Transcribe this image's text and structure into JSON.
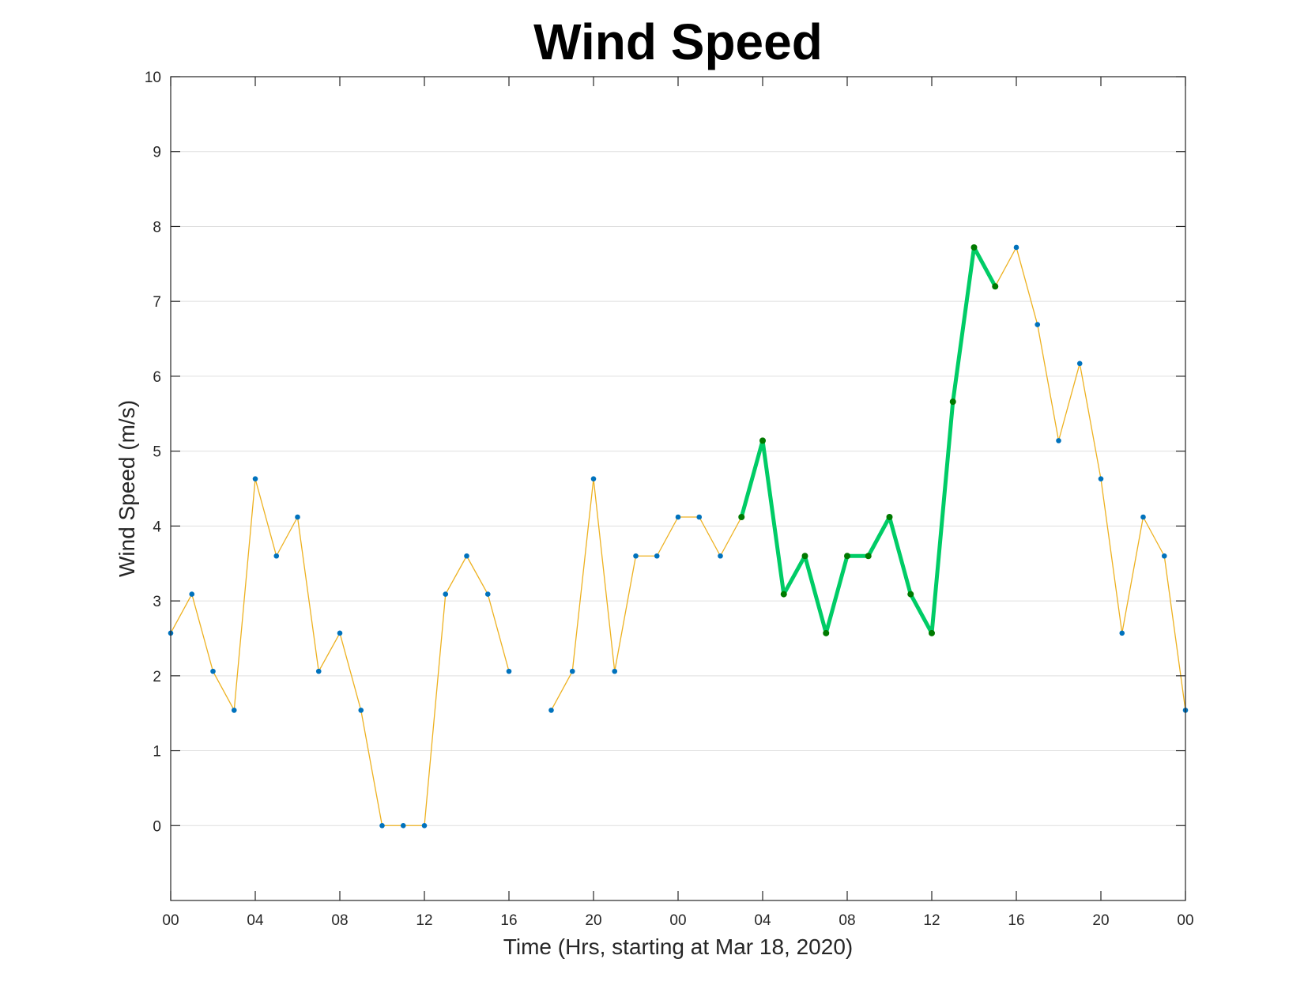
{
  "chart_data": {
    "type": "line",
    "title": "Wind Speed",
    "xlabel": "Time (Hrs, starting at Mar 18, 2020)",
    "ylabel": "Wind Speed (m/s)",
    "xlim": [
      0,
      48
    ],
    "ylim": [
      -1,
      10
    ],
    "grid": "horizontal",
    "legend": "none",
    "x_tick_positions": [
      0,
      4,
      8,
      12,
      16,
      20,
      24,
      28,
      32,
      36,
      40,
      44,
      48
    ],
    "x_tick_labels": [
      "00",
      "04",
      "08",
      "12",
      "16",
      "20",
      "00",
      "04",
      "08",
      "12",
      "16",
      "20",
      "00"
    ],
    "y_ticks": [
      0,
      1,
      2,
      3,
      4,
      5,
      6,
      7,
      8,
      9,
      10
    ],
    "series": [
      {
        "role": "all-hours",
        "color": "#EDB120",
        "marker_color": "#0072BD",
        "x": [
          0,
          1,
          2,
          3,
          4,
          5,
          6,
          7,
          8,
          9,
          10,
          11,
          12,
          13,
          14,
          15,
          16,
          17,
          18,
          19,
          20,
          21,
          22,
          23,
          24,
          25,
          26,
          27,
          28,
          29,
          30,
          31,
          32,
          33,
          34,
          35,
          36,
          37,
          38,
          39,
          40,
          41,
          42,
          43,
          44,
          45,
          46,
          47,
          48
        ],
        "values": [
          2.57,
          3.09,
          2.06,
          1.54,
          4.63,
          3.6,
          4.12,
          2.06,
          2.57,
          1.54,
          0,
          0,
          0,
          3.09,
          3.6,
          3.09,
          2.06,
          null,
          1.54,
          2.06,
          4.63,
          2.06,
          3.6,
          3.6,
          4.12,
          4.12,
          3.6,
          4.12,
          5.14,
          3.09,
          3.6,
          2.57,
          3.6,
          3.6,
          4.12,
          3.09,
          2.57,
          5.66,
          7.72,
          7.2,
          7.72,
          6.69,
          5.14,
          6.17,
          4.63,
          2.57,
          4.12,
          3.6,
          1.54
        ]
      },
      {
        "role": "highlighted",
        "color": "#00CC66",
        "marker_color": "#007A00",
        "x": [
          27,
          28,
          29,
          30,
          31,
          32,
          33,
          34,
          35,
          36,
          37,
          38,
          39
        ],
        "values": [
          4.12,
          5.14,
          3.09,
          3.6,
          2.57,
          3.6,
          3.6,
          4.12,
          3.09,
          2.57,
          5.66,
          7.72,
          7.2
        ]
      }
    ]
  }
}
